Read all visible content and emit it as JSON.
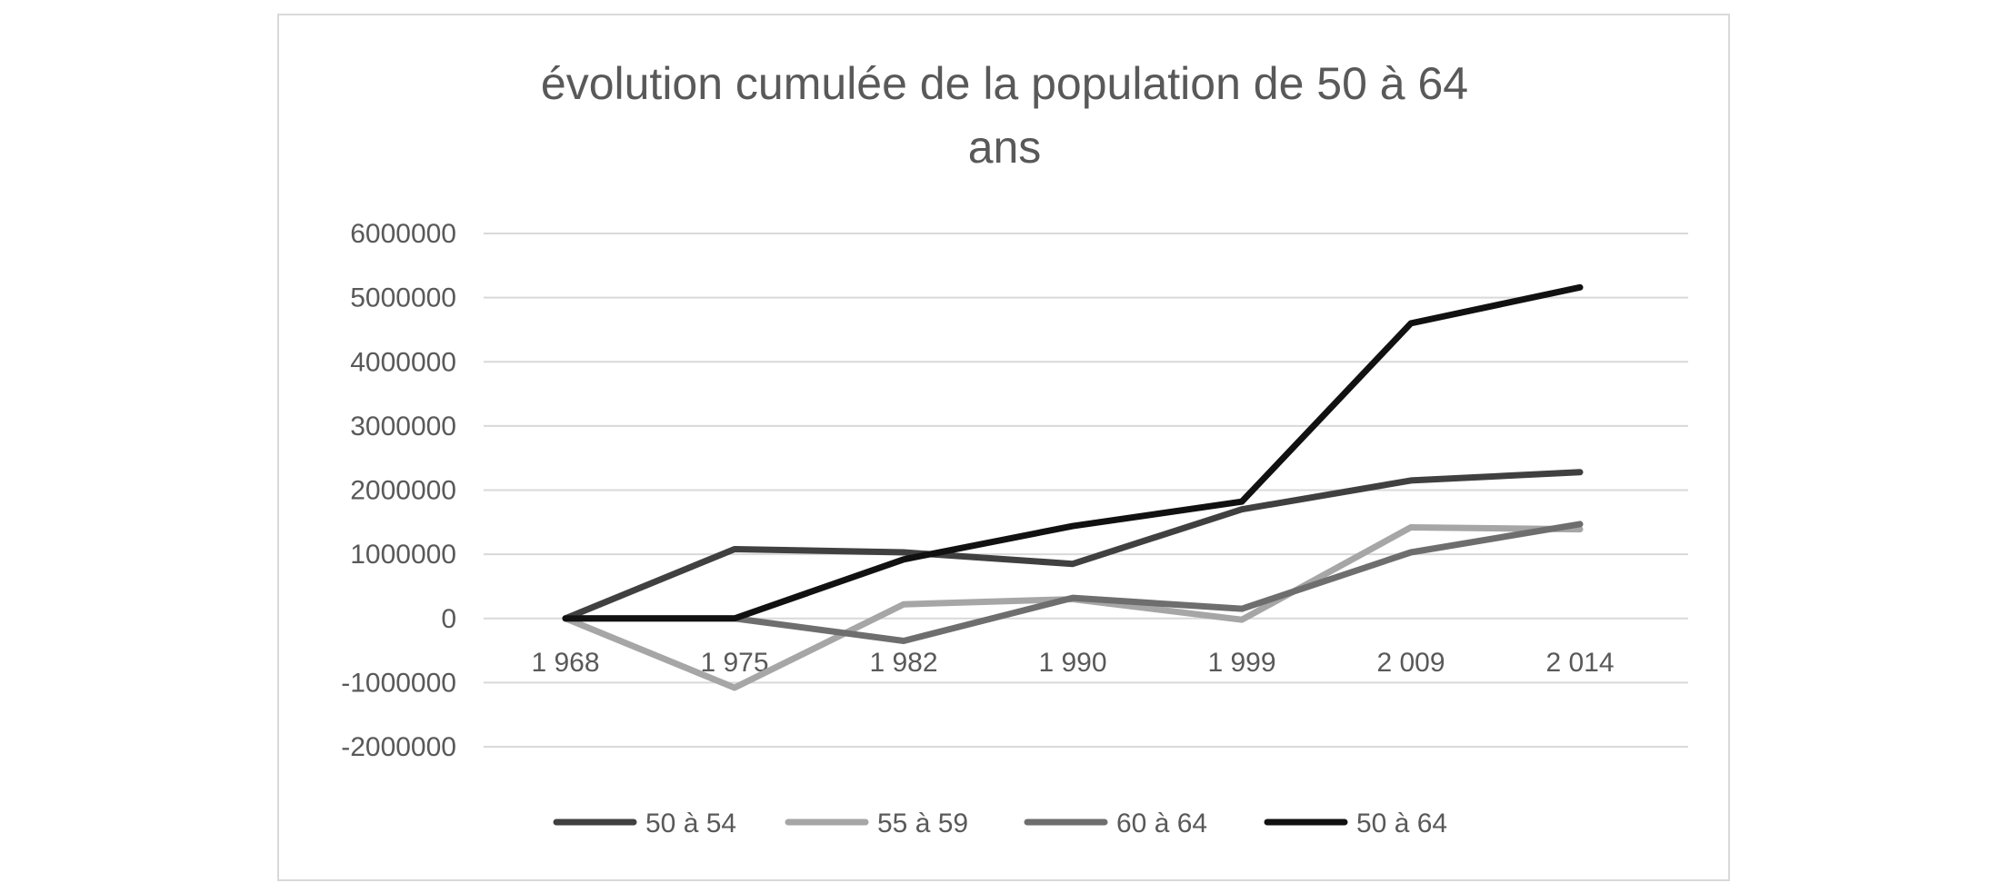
{
  "chart_data": {
    "type": "line",
    "title": "évolution cumulée de la population de 50 à 64 ans",
    "title_lines": [
      "évolution cumulée de la population de 50 à 64",
      "ans"
    ],
    "categories": [
      "1 968",
      "1 975",
      "1 982",
      "1 990",
      "1 999",
      "2 009",
      "2 014"
    ],
    "ylim": [
      -2000000,
      6000000
    ],
    "yticks": [
      -2000000,
      -1000000,
      0,
      1000000,
      2000000,
      3000000,
      4000000,
      5000000,
      6000000
    ],
    "ytick_labels": [
      "-2000000",
      "-1000000",
      "0",
      "1000000",
      "2000000",
      "3000000",
      "4000000",
      "5000000",
      "6000000"
    ],
    "xlabel": "",
    "ylabel": "",
    "grid": true,
    "legend_position": "bottom",
    "series": [
      {
        "name": "50 à 54",
        "color": "#404040",
        "values": [
          0,
          1080000,
          1030000,
          850000,
          1700000,
          2150000,
          2280000
        ]
      },
      {
        "name": "55 à 59",
        "color": "#a6a6a6",
        "values": [
          0,
          -1080000,
          220000,
          300000,
          -20000,
          1420000,
          1390000
        ]
      },
      {
        "name": "60 à 64",
        "color": "#6e6e6e",
        "values": [
          0,
          0,
          -350000,
          320000,
          150000,
          1030000,
          1470000
        ]
      },
      {
        "name": "50 à 64",
        "color": "#111111",
        "values": [
          0,
          0,
          920000,
          1440000,
          1820000,
          4600000,
          5160000
        ]
      }
    ]
  }
}
